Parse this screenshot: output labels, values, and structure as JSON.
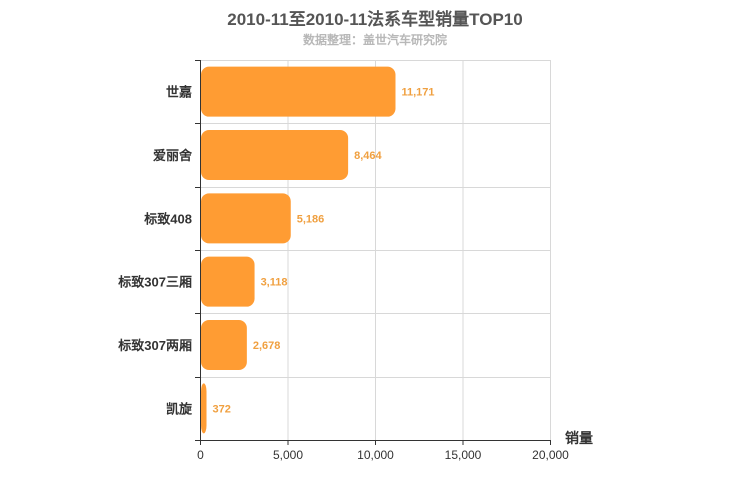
{
  "title": "2010-11至2010-11法系车型销量TOP10",
  "subtitle": "数据整理：盖世汽车研究院",
  "chart_data": {
    "type": "bar",
    "orientation": "horizontal",
    "categories": [
      "世嘉",
      "爱丽舍",
      "标致408",
      "标致307三厢",
      "标致307两厢",
      "凯旋"
    ],
    "values": [
      11171,
      8464,
      5186,
      3118,
      2678,
      372
    ],
    "value_labels": [
      "11,171",
      "8,464",
      "5,186",
      "3,118",
      "2,678",
      "372"
    ],
    "xlabel": "销量",
    "xlim": [
      0,
      20000
    ],
    "xticks": [
      0,
      5000,
      10000,
      15000,
      20000
    ],
    "xtick_labels": [
      "0",
      "5,000",
      "10,000",
      "15,000",
      "20,000"
    ],
    "grid": true,
    "legend": "none",
    "bar_color": "#ff9c33",
    "label_color": "#f0a040"
  }
}
